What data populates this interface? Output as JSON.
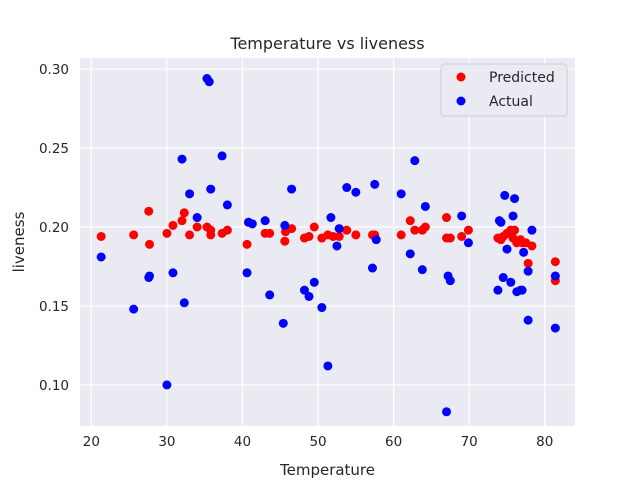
{
  "chart_data": {
    "type": "scatter",
    "title": "Temperature vs liveness",
    "xlabel": "Temperature",
    "ylabel": "liveness",
    "xlim": [
      18.5,
      84
    ],
    "ylim": [
      0.074,
      0.307
    ],
    "xticks": [
      20,
      30,
      40,
      50,
      60,
      70,
      80
    ],
    "yticks": [
      0.1,
      0.15,
      0.2,
      0.25,
      0.3
    ],
    "ytick_labels": [
      "0.10",
      "0.15",
      "0.20",
      "0.25",
      "0.30"
    ],
    "grid": true,
    "legend_position": "top-right",
    "series": [
      {
        "name": "Predicted",
        "color": "#ff0000",
        "points": [
          [
            21.3,
            0.194
          ],
          [
            25.6,
            0.195
          ],
          [
            27.6,
            0.21
          ],
          [
            27.7,
            0.189
          ],
          [
            30.0,
            0.196
          ],
          [
            30.8,
            0.201
          ],
          [
            32.0,
            0.204
          ],
          [
            32.3,
            0.209
          ],
          [
            33.0,
            0.195
          ],
          [
            34.0,
            0.2
          ],
          [
            35.3,
            0.2
          ],
          [
            35.8,
            0.195
          ],
          [
            35.8,
            0.198
          ],
          [
            37.3,
            0.196
          ],
          [
            38.0,
            0.198
          ],
          [
            40.6,
            0.189
          ],
          [
            40.8,
            0.203
          ],
          [
            43.0,
            0.196
          ],
          [
            43.6,
            0.196
          ],
          [
            45.6,
            0.191
          ],
          [
            45.7,
            0.197
          ],
          [
            46.5,
            0.199
          ],
          [
            48.2,
            0.193
          ],
          [
            48.8,
            0.194
          ],
          [
            49.5,
            0.2
          ],
          [
            50.5,
            0.193
          ],
          [
            51.3,
            0.195
          ],
          [
            52.0,
            0.194
          ],
          [
            52.8,
            0.194
          ],
          [
            53.8,
            0.198
          ],
          [
            55.0,
            0.195
          ],
          [
            57.2,
            0.195
          ],
          [
            57.5,
            0.195
          ],
          [
            61.0,
            0.195
          ],
          [
            62.2,
            0.204
          ],
          [
            62.8,
            0.198
          ],
          [
            63.8,
            0.198
          ],
          [
            64.2,
            0.2
          ],
          [
            67.0,
            0.206
          ],
          [
            67.0,
            0.193
          ],
          [
            67.5,
            0.193
          ],
          [
            69.0,
            0.194
          ],
          [
            69.9,
            0.198
          ],
          [
            73.8,
            0.193
          ],
          [
            74.2,
            0.192
          ],
          [
            74.5,
            0.194
          ],
          [
            75.0,
            0.196
          ],
          [
            75.5,
            0.198
          ],
          [
            75.8,
            0.193
          ],
          [
            76.0,
            0.198
          ],
          [
            76.3,
            0.19
          ],
          [
            76.8,
            0.192
          ],
          [
            77.0,
            0.19
          ],
          [
            77.5,
            0.19
          ],
          [
            77.8,
            0.177
          ],
          [
            78.3,
            0.188
          ],
          [
            81.4,
            0.178
          ],
          [
            81.4,
            0.166
          ]
        ]
      },
      {
        "name": "Actual",
        "color": "#0000ff",
        "points": [
          [
            21.3,
            0.181
          ],
          [
            25.6,
            0.148
          ],
          [
            27.6,
            0.168
          ],
          [
            27.7,
            0.169
          ],
          [
            30.0,
            0.1
          ],
          [
            30.8,
            0.171
          ],
          [
            32.0,
            0.243
          ],
          [
            32.3,
            0.152
          ],
          [
            33.0,
            0.221
          ],
          [
            34.0,
            0.206
          ],
          [
            35.3,
            0.294
          ],
          [
            35.6,
            0.292
          ],
          [
            35.8,
            0.224
          ],
          [
            37.3,
            0.245
          ],
          [
            38.0,
            0.214
          ],
          [
            40.6,
            0.171
          ],
          [
            40.8,
            0.203
          ],
          [
            41.3,
            0.202
          ],
          [
            43.0,
            0.204
          ],
          [
            43.6,
            0.157
          ],
          [
            45.4,
            0.139
          ],
          [
            45.6,
            0.201
          ],
          [
            46.5,
            0.224
          ],
          [
            48.2,
            0.16
          ],
          [
            48.8,
            0.156
          ],
          [
            49.5,
            0.165
          ],
          [
            50.5,
            0.149
          ],
          [
            51.3,
            0.112
          ],
          [
            51.7,
            0.206
          ],
          [
            52.5,
            0.188
          ],
          [
            52.8,
            0.199
          ],
          [
            53.8,
            0.225
          ],
          [
            55.0,
            0.222
          ],
          [
            57.2,
            0.174
          ],
          [
            57.5,
            0.227
          ],
          [
            57.7,
            0.192
          ],
          [
            61.0,
            0.221
          ],
          [
            62.2,
            0.183
          ],
          [
            62.8,
            0.242
          ],
          [
            63.8,
            0.173
          ],
          [
            64.2,
            0.213
          ],
          [
            67.0,
            0.083
          ],
          [
            67.2,
            0.169
          ],
          [
            67.5,
            0.166
          ],
          [
            69.0,
            0.207
          ],
          [
            69.9,
            0.19
          ],
          [
            73.8,
            0.16
          ],
          [
            74.0,
            0.204
          ],
          [
            74.2,
            0.203
          ],
          [
            74.5,
            0.168
          ],
          [
            74.7,
            0.22
          ],
          [
            75.0,
            0.186
          ],
          [
            75.5,
            0.165
          ],
          [
            75.8,
            0.207
          ],
          [
            76.0,
            0.218
          ],
          [
            76.3,
            0.159
          ],
          [
            76.8,
            0.16
          ],
          [
            77.0,
            0.16
          ],
          [
            77.2,
            0.184
          ],
          [
            77.8,
            0.172
          ],
          [
            77.8,
            0.141
          ],
          [
            78.3,
            0.198
          ],
          [
            81.4,
            0.136
          ],
          [
            81.4,
            0.169
          ]
        ]
      }
    ]
  }
}
